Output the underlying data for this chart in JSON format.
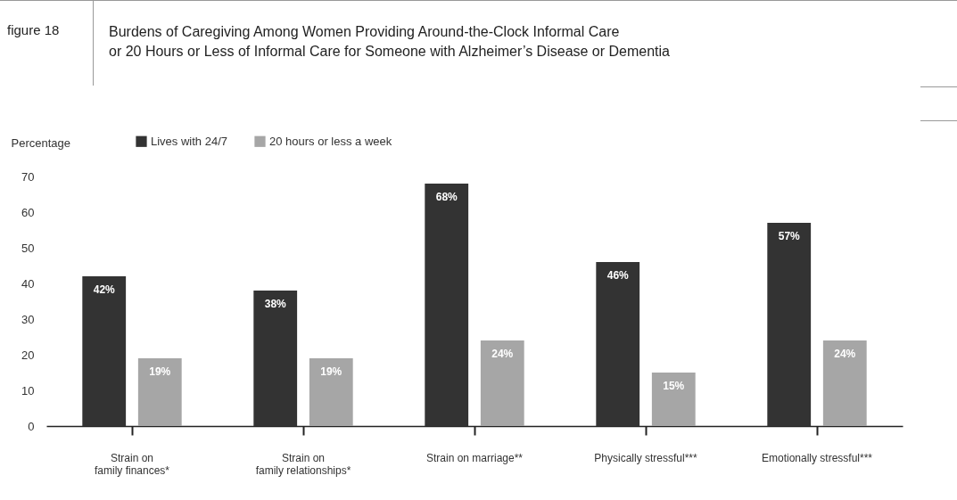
{
  "chart_data": {
    "type": "bar",
    "title": "Burdens of Caregiving Among Women Providing Around-the-Clock Informal Care or 20 Hours or Less of Informal Care for Someone with Alzheimer’s Disease or Dementia",
    "ylabel": "Percentage",
    "annotations": [
      "figure 18"
    ],
    "categories": [
      "Strain on family finances*",
      "Strain on family relationships*",
      "Strain on marriage**",
      "Physically stressful***",
      "Emotionally stressful***"
    ],
    "series": [
      {
        "name": "Lives with 24/7",
        "color": "#333333",
        "values": [
          42,
          38,
          68,
          46,
          57
        ],
        "value_labels": [
          "42%",
          "38%",
          "68%",
          "46%",
          "57%"
        ]
      },
      {
        "name": "20 hours or less a week",
        "color": "#a6a6a6",
        "values": [
          19,
          19,
          24,
          15,
          24
        ],
        "value_labels": [
          "19%",
          "19%",
          "24%",
          "15%",
          "24%"
        ]
      }
    ],
    "ylim": [
      0,
      70
    ],
    "yticks": [
      0,
      10,
      20,
      30,
      40,
      50,
      60,
      70
    ],
    "grid": false,
    "legend": "top left"
  }
}
